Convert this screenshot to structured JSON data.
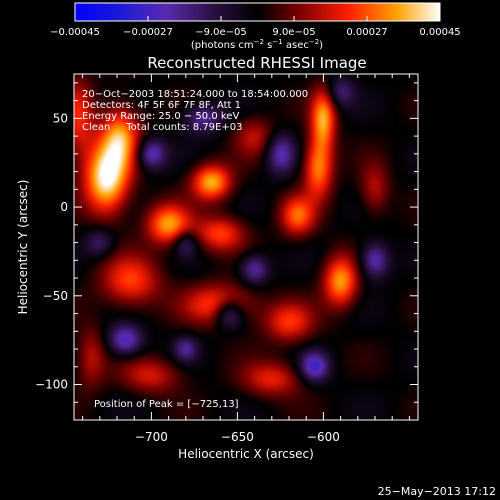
{
  "chart_data": {
    "type": "heatmap",
    "title": "Reconstructed RHESSI Image",
    "xlabel": "Heliocentric X (arcsec)",
    "ylabel": "Heliocentric Y (arcsec)",
    "xlim": [
      -745,
      -545
    ],
    "ylim": [
      -120,
      75
    ],
    "x_ticks": [
      -700,
      -650,
      -600
    ],
    "x_tick_labels": [
      "−700",
      "−650",
      "−600"
    ],
    "y_ticks": [
      50,
      0,
      -50,
      -100
    ],
    "y_tick_labels": [
      "50",
      "0",
      "−50",
      "−100"
    ],
    "colorbar": {
      "min": -0.00045,
      "max": 0.00045,
      "tick_labels": [
        "−0.00045",
        "−0.00027",
        "−9.0e−05",
        "9.0e−05",
        "0.00027",
        "0.00045"
      ],
      "unit_main": "(photons cm",
      "unit_sup1": "−2",
      "unit_mid": " s",
      "unit_sup2": "−1",
      "unit_mid2": " asec",
      "unit_sup3": "−2",
      "unit_end": ")"
    },
    "info_lines": [
      "20−Oct−2003 18:51:24.000 to 18:54:00.000",
      "Detectors: 4F 5F 6F 7F 8F, Att 1",
      "Energy Range: 25.0 − 50.0 keV",
      "Clean     Total counts: 8.79E+03"
    ],
    "peak_label": "Position of Peak = [−725,13]",
    "peak": [
      -725,
      13
    ],
    "sources": [
      {
        "x": -726,
        "y": 16,
        "amp": 1.0,
        "sx": 9,
        "sy": 14
      },
      {
        "x": -718,
        "y": 40,
        "amp": 0.7,
        "sx": 8,
        "sy": 12
      },
      {
        "x": -742,
        "y": 50,
        "amp": 0.45,
        "sx": 6,
        "sy": 16
      },
      {
        "x": -690,
        "y": -10,
        "amp": 0.75,
        "sx": 9,
        "sy": 8
      },
      {
        "x": -665,
        "y": 14,
        "amp": 0.8,
        "sx": 8,
        "sy": 7
      },
      {
        "x": -660,
        "y": -15,
        "amp": 0.55,
        "sx": 10,
        "sy": 7
      },
      {
        "x": -600,
        "y": 50,
        "amp": 0.75,
        "sx": 5,
        "sy": 12
      },
      {
        "x": -603,
        "y": 22,
        "amp": 0.7,
        "sx": 6,
        "sy": 12
      },
      {
        "x": -615,
        "y": -5,
        "amp": 0.6,
        "sx": 7,
        "sy": 8
      },
      {
        "x": -590,
        "y": -42,
        "amp": 0.75,
        "sx": 7,
        "sy": 10
      },
      {
        "x": -712,
        "y": -42,
        "amp": 0.55,
        "sx": 12,
        "sy": 10
      },
      {
        "x": -660,
        "y": -55,
        "amp": 0.6,
        "sx": 14,
        "sy": 8
      },
      {
        "x": -620,
        "y": -65,
        "amp": 0.5,
        "sx": 10,
        "sy": 8
      },
      {
        "x": -700,
        "y": -95,
        "amp": 0.4,
        "sx": 12,
        "sy": 7
      },
      {
        "x": -630,
        "y": -97,
        "amp": 0.45,
        "sx": 12,
        "sy": 7
      },
      {
        "x": -735,
        "y": -85,
        "amp": 0.35,
        "sx": 6,
        "sy": 12
      },
      {
        "x": -640,
        "y": 40,
        "amp": 0.35,
        "sx": 8,
        "sy": 8
      },
      {
        "x": -570,
        "y": 10,
        "amp": 0.35,
        "sx": 6,
        "sy": 10
      },
      {
        "x": -700,
        "y": 30,
        "amp": -0.55,
        "sx": 6,
        "sy": 6
      },
      {
        "x": -670,
        "y": 50,
        "amp": -0.45,
        "sx": 8,
        "sy": 6
      },
      {
        "x": -640,
        "y": -35,
        "amp": -0.5,
        "sx": 6,
        "sy": 6
      },
      {
        "x": -680,
        "y": -20,
        "amp": -0.4,
        "sx": 5,
        "sy": 5
      },
      {
        "x": -655,
        "y": -60,
        "amp": -0.6,
        "sx": 6,
        "sy": 6
      },
      {
        "x": -715,
        "y": -75,
        "amp": -0.6,
        "sx": 7,
        "sy": 6
      },
      {
        "x": -605,
        "y": -90,
        "amp": -0.6,
        "sx": 6,
        "sy": 6
      },
      {
        "x": -570,
        "y": -30,
        "amp": -0.55,
        "sx": 6,
        "sy": 7
      },
      {
        "x": -625,
        "y": 30,
        "amp": -0.5,
        "sx": 6,
        "sy": 8
      },
      {
        "x": -730,
        "y": -20,
        "amp": -0.35,
        "sx": 6,
        "sy": 6
      },
      {
        "x": -590,
        "y": 65,
        "amp": -0.35,
        "sx": 6,
        "sy": 6
      },
      {
        "x": -680,
        "y": -80,
        "amp": -0.4,
        "sx": 5,
        "sy": 5
      }
    ]
  },
  "footer_timestamp": "25−May−2013 17:12"
}
